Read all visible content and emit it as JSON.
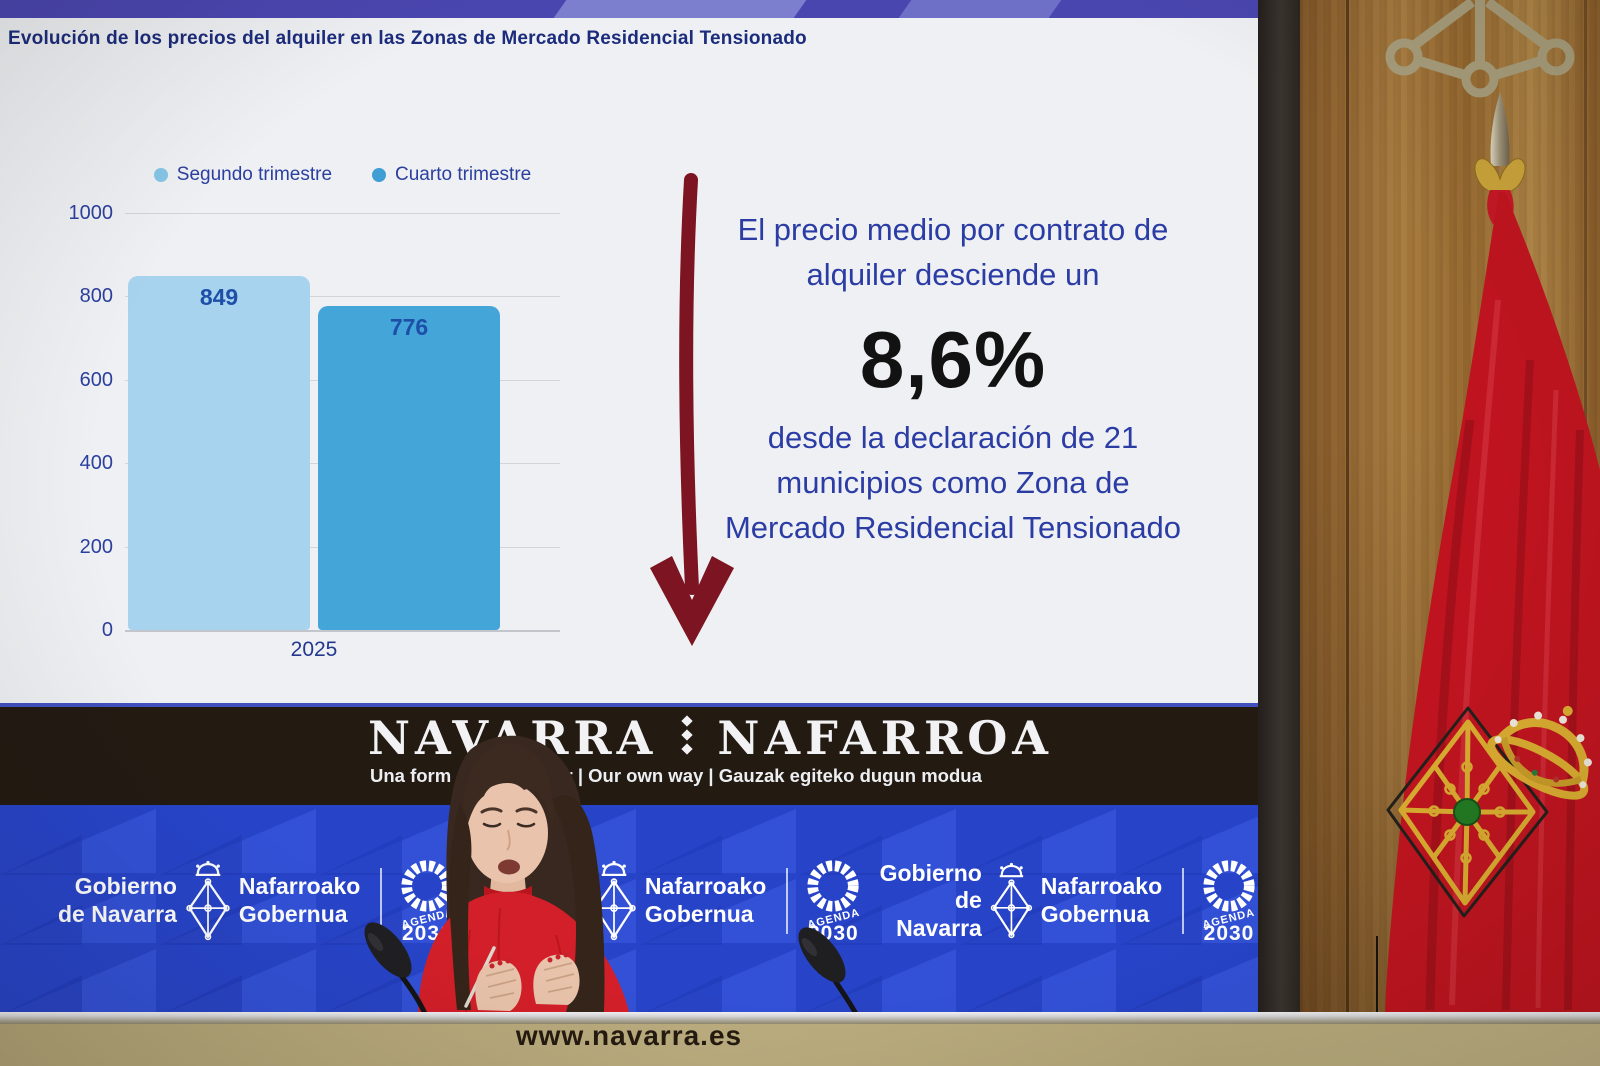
{
  "slide": {
    "title": "Evolución de los precios del alquiler en las Zonas de Mercado Residencial Tensionado",
    "message": {
      "intro": "El precio medio por contrato de alquiler desciende un",
      "highlight": "8,6%",
      "detail": "desde la declaración de 21 municipios como Zona de Mercado Residencial Tensionado"
    },
    "chart_data": {
      "type": "bar",
      "title": "Evolución de los precios del alquiler en las Zonas de Mercado Residencial Tensionado",
      "categories": [
        "2025"
      ],
      "series": [
        {
          "name": "Segundo trimestre",
          "values": [
            849
          ],
          "color": "#a7d3ee",
          "dot_color": "#85c6e6"
        },
        {
          "name": "Cuarto trimestre",
          "values": [
            776
          ],
          "color": "#44a5d9",
          "dot_color": "#3f9fd4"
        }
      ],
      "ylabel": "",
      "xlabel": "",
      "ylim": [
        0,
        1000
      ],
      "yticks": [
        0,
        200,
        400,
        600,
        800,
        1000
      ],
      "grid": true,
      "legend_position": "top"
    }
  },
  "brand_band": {
    "navarra": "NAVARRA",
    "nafarroa": "NAFARROA",
    "tagline_left": "Una form",
    "tagline_right": "ar | Our own way | Gauzak egiteko dugun modua"
  },
  "gov_banner": {
    "logo": {
      "es_line1": "Gobierno",
      "es_line2": "de Navarra",
      "eu_line1": "Nafarroako",
      "eu_line2": "Gobernua"
    },
    "agenda": {
      "line1": "AGENDA",
      "line2": "2030"
    }
  },
  "desk": {
    "url": "www.navarra.es"
  },
  "colors": {
    "slide_bg": "#eef0f3",
    "title_navy": "#1c2c7c",
    "text_blue": "#2b3da4",
    "bar_light": "#a7d3ee",
    "bar_dark": "#44a5d9",
    "arrow_maroon": "#7c1421",
    "band_black": "#231a12",
    "banner_blue": "#2744c9",
    "flag_red": "#bf141f",
    "desk_tan": "#b7aa7c",
    "wood_brown": "#96692f"
  }
}
